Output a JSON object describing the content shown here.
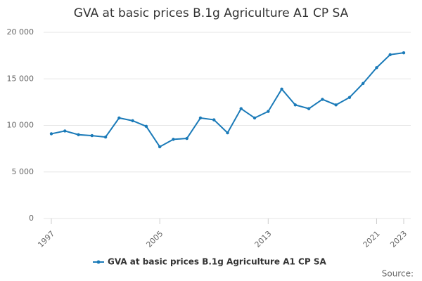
{
  "chart_data": {
    "type": "line",
    "title": "GVA at basic prices B.1g Agriculture A1 CP SA",
    "x": [
      1997,
      1998,
      1999,
      2000,
      2001,
      2002,
      2003,
      2004,
      2005,
      2006,
      2007,
      2008,
      2009,
      2010,
      2011,
      2012,
      2013,
      2014,
      2015,
      2016,
      2017,
      2018,
      2019,
      2020,
      2021,
      2022,
      2023
    ],
    "series": [
      {
        "name": "GVA at basic prices B.1g Agriculture A1 CP SA",
        "color": "#1a7ab8",
        "values": [
          9100,
          9400,
          9000,
          8900,
          8750,
          10800,
          10500,
          9900,
          7700,
          8500,
          8600,
          10800,
          10600,
          9200,
          11800,
          10800,
          11500,
          13900,
          12200,
          11800,
          12800,
          12200,
          13000,
          14500,
          16200,
          17600,
          17800
        ]
      }
    ],
    "xlim": [
      1997,
      2023
    ],
    "xticks": [
      1997,
      2005,
      2013,
      2021,
      2023
    ],
    "ylim": [
      0,
      20000
    ],
    "yticks": [
      0,
      {
        "value": 5000,
        "label": "5 000"
      },
      {
        "value": 10000,
        "label": "10 000"
      },
      {
        "value": 15000,
        "label": "15 000"
      },
      {
        "value": 20000,
        "label": "20 000"
      }
    ],
    "grid": true,
    "legend": "bottom",
    "source": "Source:"
  }
}
